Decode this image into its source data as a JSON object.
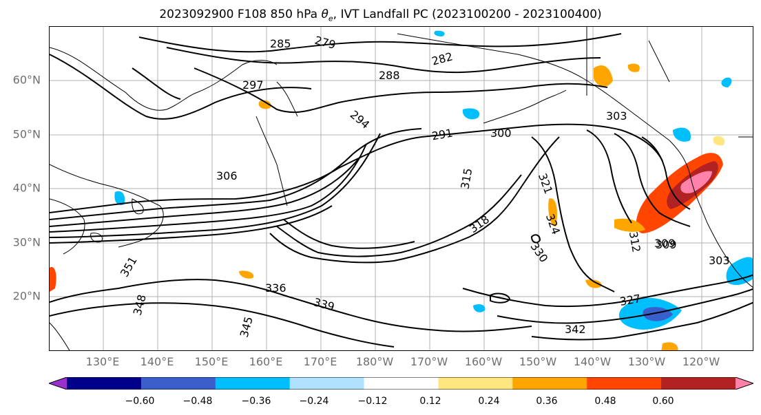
{
  "title": "2023092900 F108 850 hPa θe, IVT Landfall PC (2023100200 - 2023100400)",
  "title_parts": {
    "prefix": "2023092900 F108 850 hPa ",
    "theta": "θ",
    "sub": "e",
    "suffix": ", IVT Landfall PC (2023100200 - 2023100400)"
  },
  "map": {
    "lat_labels": [
      "60°N",
      "50°N",
      "40°N",
      "30°N",
      "20°N"
    ],
    "lon_labels": [
      "130°E",
      "140°E",
      "150°E",
      "160°E",
      "170°E",
      "180°W",
      "170°W",
      "160°W",
      "150°W",
      "140°W",
      "130°W",
      "120°W"
    ],
    "contour_labels": [
      "285",
      "279",
      "282",
      "288",
      "291",
      "294",
      "297",
      "300",
      "303",
      "306",
      "309",
      "312",
      "315",
      "318",
      "321",
      "324",
      "327",
      "330",
      "336",
      "339",
      "342",
      "345",
      "348",
      "351",
      "309",
      "303"
    ]
  },
  "colorbar": {
    "colors": [
      "#9932cc",
      "#00008b",
      "#3a5fcd",
      "#00bfff",
      "#b0e2ff",
      "#ffffff",
      "#ffe680",
      "#ffa500",
      "#ff4500",
      "#b22222",
      "#ff82ab"
    ],
    "ticks": [
      "−0.60",
      "−0.48",
      "−0.36",
      "−0.24",
      "−0.12",
      "0.12",
      "0.24",
      "0.36",
      "0.48",
      "0.60"
    ]
  }
}
